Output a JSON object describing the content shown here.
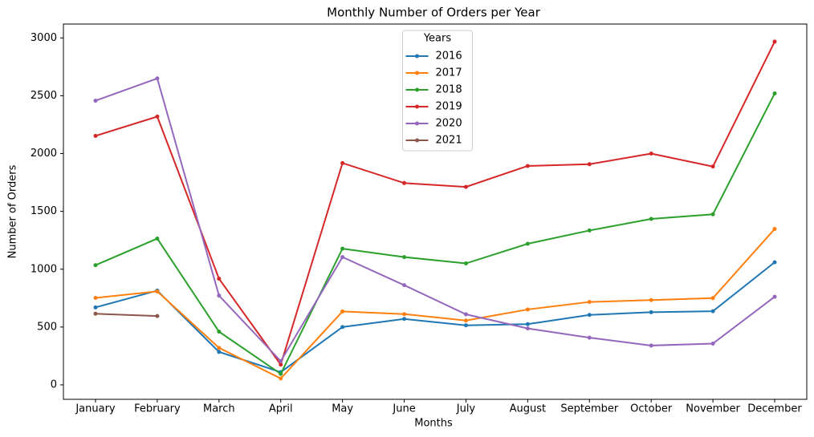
{
  "chart_data": {
    "type": "line",
    "title": "Monthly Number of Orders per Year",
    "xlabel": "Months",
    "ylabel": "Number of Orders",
    "categories": [
      "January",
      "February",
      "March",
      "April",
      "May",
      "June",
      "July",
      "August",
      "September",
      "October",
      "November",
      "December"
    ],
    "series": [
      {
        "name": "2016",
        "color": "#1f77b4",
        "values": [
          670,
          815,
          285,
          110,
          500,
          570,
          515,
          525,
          605,
          628,
          637,
          1060
        ]
      },
      {
        "name": "2017",
        "color": "#ff7f0e",
        "values": [
          752,
          808,
          320,
          55,
          635,
          612,
          556,
          652,
          717,
          733,
          750,
          1348
        ]
      },
      {
        "name": "2018",
        "color": "#2ca02c",
        "values": [
          1035,
          1265,
          460,
          95,
          1178,
          1105,
          1050,
          1220,
          1335,
          1435,
          1475,
          2520
        ]
      },
      {
        "name": "2019",
        "color": "#d62728",
        "values": [
          2153,
          2320,
          918,
          175,
          1918,
          1745,
          1712,
          1893,
          1908,
          2000,
          1888,
          2968
        ]
      },
      {
        "name": "2020",
        "color": "#9467bd",
        "values": [
          2457,
          2650,
          772,
          205,
          1105,
          862,
          610,
          488,
          408,
          340,
          357,
          762
        ]
      },
      {
        "name": "2021",
        "color": "#8c564b",
        "values": [
          615,
          595,
          null,
          null,
          null,
          null,
          null,
          null,
          null,
          null,
          null,
          null
        ]
      }
    ],
    "legend_title": "Years",
    "legend": "upper center",
    "ylim": [
      -125,
      3120
    ],
    "yticks": [
      0,
      500,
      1000,
      1500,
      2000,
      2500,
      3000
    ],
    "grid": false
  }
}
